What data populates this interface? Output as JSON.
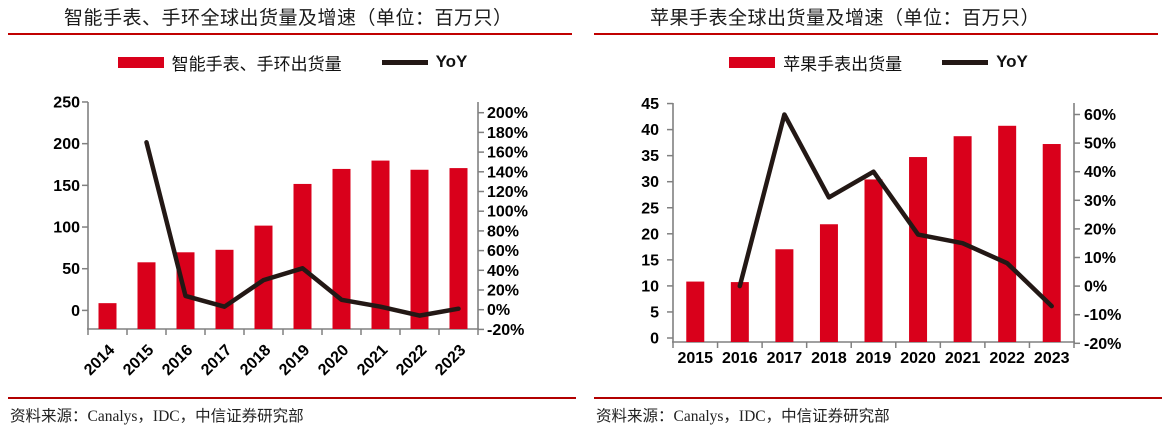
{
  "colors": {
    "bar": "#d9001b",
    "line": "#231815",
    "underline": "#c00000",
    "footer": "#b20000",
    "axis": "#808080",
    "text": "#1a1a1a"
  },
  "panels": [
    {
      "title": "智能手表、手环全球出货量及增速（单位：百万只）",
      "legend": {
        "bar_label": "智能手表、手环出货量",
        "line_label": "YoY"
      },
      "source": "资料来源：Canalys，IDC，中信证券研究部",
      "chart_data": {
        "type": "bar",
        "subtype": "bar+line-dual-axis",
        "categories": [
          "2014",
          "2015",
          "2016",
          "2017",
          "2018",
          "2019",
          "2020",
          "2021",
          "2022",
          "2023"
        ],
        "series": [
          {
            "name": "智能手表、手环出货量",
            "kind": "bar",
            "axis": "left",
            "values": [
              31,
              80,
              92,
              95,
              124,
              174,
              192,
              202,
              191,
              193
            ]
          },
          {
            "name": "YoY",
            "kind": "line",
            "axis": "right",
            "unit": "%",
            "values": [
              null,
              170,
              14,
              3,
              30,
              42,
              10,
              3,
              -6,
              1
            ]
          }
        ],
        "left_axis": {
          "min": 0,
          "max": 250,
          "step": 50,
          "tick_labels": [
            "0",
            "50",
            "100",
            "150",
            "200",
            "250"
          ]
        },
        "right_axis": {
          "min": -20,
          "max": 200,
          "step": 20,
          "unit": "%",
          "tick_labels": [
            "-20%",
            "0%",
            "20%",
            "40%",
            "60%",
            "80%",
            "100%",
            "120%",
            "140%",
            "160%",
            "180%",
            "200%"
          ]
        },
        "grid": false,
        "legend_position": "top",
        "x_labels_rotated": true
      }
    },
    {
      "title": "苹果手表全球出货量及增速（单位：百万只）",
      "legend": {
        "bar_label": "苹果手表出货量",
        "line_label": "YoY"
      },
      "source": "资料来源：Canalys，IDC，中信证券研究部",
      "chart_data": {
        "type": "bar",
        "subtype": "bar+line-dual-axis",
        "categories": [
          "2015",
          "2016",
          "2017",
          "2018",
          "2019",
          "2020",
          "2021",
          "2022",
          "2023"
        ],
        "series": [
          {
            "name": "苹果手表出货量",
            "kind": "bar",
            "axis": "left",
            "values": [
              11.6,
              11.5,
              17.8,
              22.6,
              31.2,
              35.5,
              39.5,
              41.5,
              38.0
            ]
          },
          {
            "name": "YoY",
            "kind": "line",
            "axis": "right",
            "unit": "%",
            "values": [
              null,
              0,
              60,
              31,
              40,
              18,
              15,
              8,
              -7
            ]
          }
        ],
        "left_axis": {
          "min": 0,
          "max": 45,
          "step": 5,
          "tick_labels": [
            "0",
            "5",
            "10",
            "15",
            "20",
            "25",
            "30",
            "35",
            "40",
            "45"
          ]
        },
        "right_axis": {
          "min": -20,
          "max": 60,
          "step": 10,
          "unit": "%",
          "tick_labels": [
            "-20%",
            "-10%",
            "0%",
            "10%",
            "20%",
            "30%",
            "40%",
            "50%",
            "60%"
          ]
        },
        "grid": false,
        "legend_position": "top",
        "x_labels_rotated": false
      }
    }
  ]
}
